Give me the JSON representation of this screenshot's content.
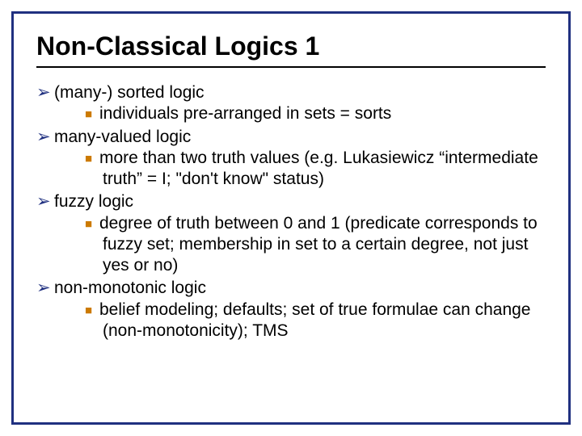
{
  "colors": {
    "border": "#203080",
    "arrow_bullet": "#203080",
    "square_bullet": "#cc7a00",
    "text": "#000000",
    "rule": "#000000",
    "background": "#ffffff"
  },
  "typography": {
    "title_fontsize": 32,
    "body_fontsize": 21,
    "font_family": "Arial"
  },
  "title": "Non-Classical Logics 1",
  "bullets": [
    {
      "text": "(many-) sorted logic",
      "sub": [
        "individuals pre-arranged in sets = sorts"
      ]
    },
    {
      "text": "many-valued logic",
      "sub": [
        "more than two truth values (e.g. Lukasiewicz “intermediate truth” = I; \"don't know\" status)"
      ]
    },
    {
      "text": "fuzzy logic",
      "sub": [
        "degree of truth between 0 and 1 (predicate corresponds to fuzzy set; membership in set to a certain degree, not just yes or no)"
      ]
    },
    {
      "text": "non-monotonic logic",
      "sub": [
        "belief modeling; defaults; set of true formulae can change (non-monotonicity); TMS"
      ]
    }
  ]
}
